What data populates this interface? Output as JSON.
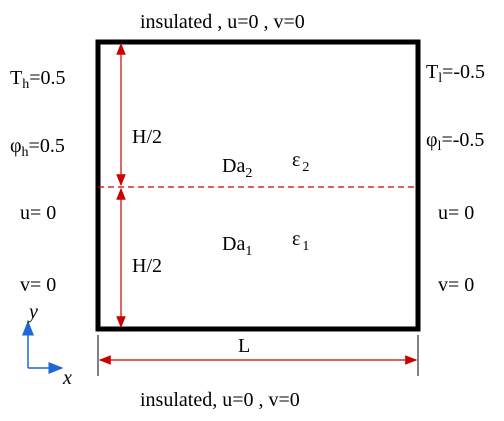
{
  "top_boundary": {
    "text": "insulated , u=0 , v=0"
  },
  "bottom_boundary": {
    "text": "insulated, u=0 , v=0"
  },
  "left": {
    "T_main": "T",
    "T_sub": "h",
    "T_val": "=0.5",
    "phi_main": "φ",
    "phi_sub": "h",
    "phi_val": "=0.5",
    "u": "u= 0",
    "v": "v= 0"
  },
  "right": {
    "T_main": "T",
    "T_sub": "l",
    "T_val": "=-0.5",
    "phi_main": "φ",
    "phi_sub": "l",
    "phi_val": "=-0.5",
    "u": "u= 0",
    "v": "v= 0"
  },
  "upper_layer": {
    "height_label": "H/2",
    "da_main": "Da",
    "da_sub": "2",
    "eps_main": "ε",
    "eps_sub": "2"
  },
  "lower_layer": {
    "height_label": "H/2",
    "da_main": "Da",
    "da_sub": "1",
    "eps_main": "ε",
    "eps_sub": "1"
  },
  "length_label": "L",
  "axes": {
    "y": "y",
    "x": "x"
  },
  "colors": {
    "wall": "#000000",
    "dimension": "#cc0000",
    "axis": "#1f66d6"
  }
}
